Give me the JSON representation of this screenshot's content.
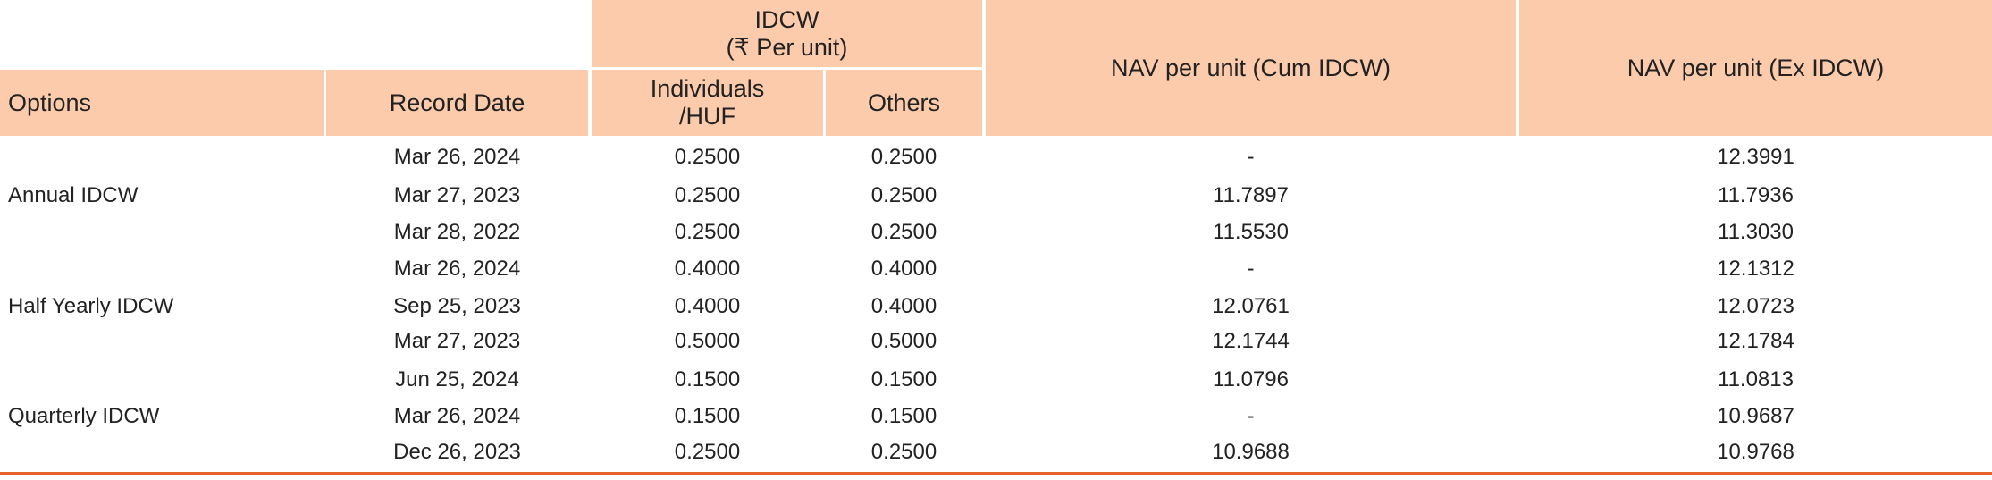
{
  "header": {
    "group": "IDCW\n(₹ Per unit)",
    "columns": [
      "Options",
      "Record Date",
      "Individuals\n/HUF",
      "Others",
      "NAV per unit (Cum IDCW)",
      "NAV per unit (Ex IDCW)"
    ]
  },
  "groups": [
    {
      "option": "Annual IDCW",
      "rows": [
        [
          "Mar 26, 2024",
          "0.2500",
          "0.2500",
          "-",
          "12.3991"
        ],
        [
          "Mar 27, 2023",
          "0.2500",
          "0.2500",
          "11.7897",
          "11.7936"
        ],
        [
          "Mar 28, 2022",
          "0.2500",
          "0.2500",
          "11.5530",
          "11.3030"
        ]
      ]
    },
    {
      "option": "Half Yearly IDCW",
      "rows": [
        [
          "Mar 26, 2024",
          "0.4000",
          "0.4000",
          "-",
          "12.1312"
        ],
        [
          "Sep 25, 2023",
          "0.4000",
          "0.4000",
          "12.0761",
          "12.0723"
        ],
        [
          "Mar 27, 2023",
          "0.5000",
          "0.5000",
          "12.1744",
          "12.1784"
        ]
      ]
    },
    {
      "option": "Quarterly IDCW",
      "rows": [
        [
          "Jun 25, 2024",
          "0.1500",
          "0.1500",
          "11.0796",
          "11.0813"
        ],
        [
          "Mar 26, 2024",
          "0.1500",
          "0.1500",
          "-",
          "10.9687"
        ],
        [
          "Dec 26, 2023",
          "0.2500",
          "0.2500",
          "10.9688",
          "10.9768"
        ]
      ]
    }
  ]
}
